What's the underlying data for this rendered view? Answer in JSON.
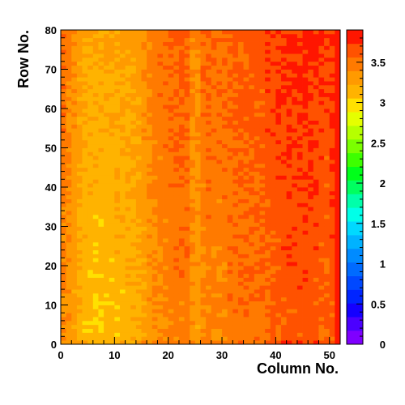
{
  "chart_data": {
    "type": "heatmap",
    "title": "",
    "xlabel": "Column No.",
    "ylabel": "Row No.",
    "xlim": [
      0,
      52
    ],
    "ylim": [
      0,
      80
    ],
    "x_ticks": [
      "0",
      "10",
      "20",
      "30",
      "40",
      "50"
    ],
    "y_ticks": [
      "0",
      "10",
      "20",
      "30",
      "40",
      "50",
      "60",
      "70",
      "80"
    ],
    "n_columns": 52,
    "n_rows": 80,
    "z_range": [
      0,
      3.9
    ],
    "z_ticks": [
      "0",
      "0.5",
      "1",
      "1.5",
      "2",
      "2.5",
      "3",
      "3.5"
    ],
    "grid": false,
    "colormap": "rainbow",
    "color_steps": [
      "#7f00ff",
      "#4b00ff",
      "#1400ff",
      "#0025ff",
      "#0048ff",
      "#006bff",
      "#008bff",
      "#00b2ff",
      "#00d9ff",
      "#00ffe8",
      "#00ffaa",
      "#00ff60",
      "#00ff1a",
      "#3dff00",
      "#7bff00",
      "#b6ff00",
      "#e5ff00",
      "#ffe100",
      "#ffb300",
      "#ff9a00",
      "#ff7a00",
      "#ff5200",
      "#ff1600"
    ],
    "column_profile": [
      3.4,
      3.33,
      3.24,
      3.15,
      3.1,
      3.08,
      3.07,
      3.07,
      3.07,
      3.08,
      3.1,
      3.1,
      3.12,
      3.15,
      3.18,
      3.24,
      3.3,
      3.35,
      3.38,
      3.4,
      3.43,
      3.45,
      3.46,
      3.46,
      3.3,
      3.28,
      3.38,
      3.44,
      3.4,
      3.4,
      3.42,
      3.46,
      3.48,
      3.48,
      3.5,
      3.5,
      3.51,
      3.52,
      3.55,
      3.57,
      3.58,
      3.6,
      3.62,
      3.62,
      3.63,
      3.64,
      3.63,
      3.61,
      3.58,
      3.55,
      3.6,
      3.78
    ],
    "row_trend": "values increase toward the top rows; bottom row and leftmost column slightly higher",
    "noise_amplitude": 0.09
  }
}
